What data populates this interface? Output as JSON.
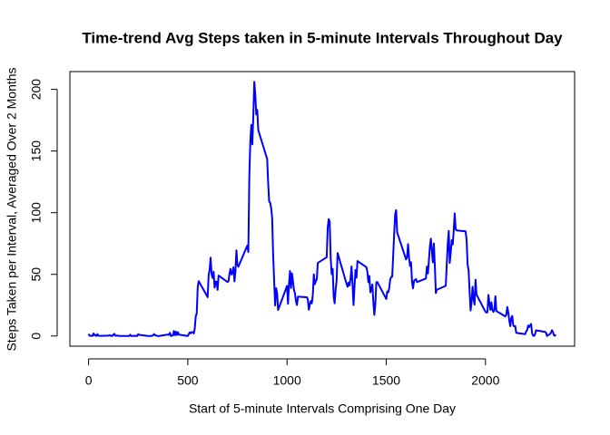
{
  "chart_data": {
    "type": "line",
    "title": "Time-trend Avg Steps taken in 5-minute Intervals Throughout Day",
    "x_label": "Start of 5-minute Intervals Comprising One Day",
    "y_label": "Steps Taken per Interval, Averaged Over 2 Months",
    "xlim": [
      -94.2,
      2449.2
    ],
    "ylim": [
      -8.25,
      214.42
    ],
    "xticks": [
      0,
      500,
      1000,
      1500,
      2000
    ],
    "yticks": [
      0,
      50,
      100,
      150,
      200
    ],
    "color": "#0000ff",
    "x": [
      0,
      5,
      10,
      15,
      20,
      25,
      30,
      35,
      40,
      45,
      50,
      55,
      100,
      105,
      110,
      115,
      120,
      125,
      130,
      135,
      140,
      145,
      150,
      155,
      200,
      205,
      210,
      215,
      220,
      225,
      230,
      235,
      240,
      245,
      250,
      255,
      300,
      305,
      310,
      315,
      320,
      325,
      330,
      335,
      340,
      345,
      350,
      355,
      400,
      405,
      410,
      415,
      420,
      425,
      430,
      435,
      440,
      445,
      450,
      455,
      500,
      505,
      510,
      515,
      520,
      525,
      530,
      535,
      540,
      545,
      550,
      555,
      600,
      605,
      610,
      615,
      620,
      625,
      630,
      635,
      640,
      645,
      650,
      655,
      700,
      705,
      710,
      715,
      720,
      725,
      730,
      735,
      740,
      745,
      750,
      755,
      800,
      805,
      810,
      815,
      820,
      825,
      830,
      835,
      840,
      845,
      850,
      855,
      900,
      905,
      910,
      915,
      920,
      925,
      930,
      935,
      940,
      945,
      950,
      955,
      1000,
      1005,
      1010,
      1015,
      1020,
      1025,
      1030,
      1035,
      1040,
      1045,
      1050,
      1055,
      1100,
      1105,
      1110,
      1115,
      1120,
      1125,
      1130,
      1135,
      1140,
      1145,
      1150,
      1155,
      1200,
      1205,
      1210,
      1215,
      1220,
      1225,
      1230,
      1235,
      1240,
      1245,
      1250,
      1255,
      1300,
      1305,
      1310,
      1315,
      1320,
      1325,
      1330,
      1335,
      1340,
      1345,
      1350,
      1355,
      1400,
      1405,
      1410,
      1415,
      1420,
      1425,
      1430,
      1435,
      1440,
      1445,
      1450,
      1455,
      1500,
      1505,
      1510,
      1515,
      1520,
      1525,
      1530,
      1535,
      1540,
      1545,
      1550,
      1555,
      1600,
      1605,
      1610,
      1615,
      1620,
      1625,
      1630,
      1635,
      1640,
      1645,
      1650,
      1655,
      1700,
      1705,
      1710,
      1715,
      1720,
      1725,
      1730,
      1735,
      1740,
      1745,
      1750,
      1755,
      1800,
      1805,
      1810,
      1815,
      1820,
      1825,
      1830,
      1835,
      1840,
      1845,
      1850,
      1855,
      1900,
      1905,
      1910,
      1915,
      1920,
      1925,
      1930,
      1935,
      1940,
      1945,
      1950,
      1955,
      2000,
      2005,
      2010,
      2015,
      2020,
      2025,
      2030,
      2035,
      2040,
      2045,
      2050,
      2055,
      2100,
      2105,
      2110,
      2115,
      2120,
      2125,
      2130,
      2135,
      2140,
      2145,
      2150,
      2155,
      2200,
      2205,
      2210,
      2215,
      2220,
      2225,
      2230,
      2235,
      2240,
      2245,
      2250,
      2255,
      2300,
      2305,
      2310,
      2315,
      2320,
      2325,
      2330,
      2335,
      2340,
      2345,
      2350,
      2355
    ],
    "values": [
      1.7,
      0.3,
      0.1,
      0.2,
      0.1,
      2.1,
      0.5,
      0.9,
      0,
      1.5,
      0.3,
      0.1,
      0.3,
      0.7,
      0.2,
      0.3,
      0,
      1.1,
      1.8,
      0.2,
      0.2,
      0.4,
      0.3,
      0,
      0,
      0,
      1.1,
      0,
      0,
      0.1,
      0,
      0.2,
      0,
      0,
      1.5,
      0.9,
      0,
      0,
      0,
      0,
      0.2,
      0.6,
      1.6,
      0.6,
      0.5,
      0.1,
      0,
      0,
      1.2,
      0.9,
      2.6,
      0,
      0.3,
      0.4,
      4.1,
      0.7,
      3.5,
      0.8,
      3.1,
      1.1,
      0,
      1.6,
      3,
      2.2,
      3.3,
      3,
      2.1,
      6,
      16,
      18.3,
      39.5,
      44.5,
      31.5,
      49.3,
      53.8,
      63.5,
      50,
      47.1,
      52.2,
      39.3,
      44,
      44.2,
      37.4,
      49,
      43.8,
      44.4,
      50.5,
      54.5,
      49.9,
      51,
      55.7,
      44.3,
      52.3,
      69.5,
      57.8,
      56.2,
      73.4,
      68.2,
      129.4,
      157.5,
      171.2,
      155.4,
      177.3,
      206.2,
      195.9,
      179.6,
      183.4,
      167,
      143.5,
      124,
      109.1,
      108.1,
      103.7,
      96,
      66.2,
      45.2,
      24.8,
      38.8,
      35,
      21.1,
      40.6,
      26.1,
      42.4,
      52.7,
      38.9,
      50.8,
      44.3,
      37.4,
      34.7,
      28.3,
      25.1,
      31.9,
      31.4,
      29.7,
      21.3,
      25.5,
      28.4,
      26.5,
      33.4,
      50,
      42,
      44.6,
      46,
      59.2,
      63.9,
      87.7,
      94.8,
      92.8,
      63.4,
      50.2,
      54.5,
      32.4,
      26.5,
      37.7,
      45.1,
      67.3,
      42.3,
      39.9,
      43.3,
      41,
      46.2,
      56.4,
      42.8,
      25.1,
      40,
      53.5,
      47.3,
      60.8,
      55.8,
      52,
      43.6,
      48.7,
      35.5,
      37.5,
      41.8,
      27.5,
      17.1,
      26.1,
      43.6,
      43.8,
      30,
      36.1,
      35.5,
      38.8,
      46,
      47.8,
      48.1,
      65.3,
      82.9,
      98.7,
      102.1,
      84,
      62.1,
      64.1,
      74.5,
      63.2,
      56.9,
      59.8,
      43.9,
      38.6,
      44.7,
      45.5,
      46.2,
      43.7,
      46.6,
      56.3,
      50.7,
      61.2,
      72.7,
      78.9,
      68.9,
      59.7,
      75.1,
      56.5,
      34.8,
      37.5,
      40.7,
      58,
      74.7,
      85.3,
      59.3,
      67.8,
      77.7,
      74.2,
      85.3,
      99.5,
      86.6,
      85.6,
      84.9,
      77.8,
      58,
      53.4,
      36.3,
      20.7,
      27.4,
      40,
      30.2,
      25.5,
      45.7,
      33.5,
      19.6,
      19,
      19.3,
      33.3,
      26.8,
      21.2,
      27.3,
      21.3,
      19.5,
      21.3,
      32.3,
      20.2,
      15.9,
      17.2,
      23.5,
      19.2,
      12.5,
      8,
      14.7,
      16.3,
      8.7,
      7.8,
      8.1,
      2.6,
      1.5,
      3.7,
      4.8,
      8.5,
      7.1,
      8.7,
      9.8,
      2.2,
      0.3,
      0.1,
      1.6,
      4.6,
      3.3,
      2.8,
      0,
      0.8,
      1,
      1.6,
      2.6,
      4.7,
      3.3,
      0.6,
      0.2,
      1.1
    ]
  }
}
